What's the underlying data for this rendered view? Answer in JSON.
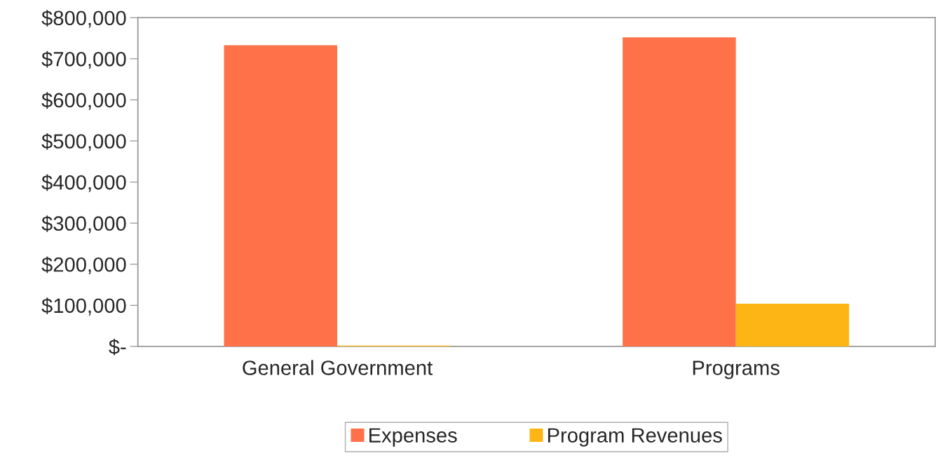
{
  "chart_data": {
    "type": "bar",
    "categories": [
      "General Government",
      "Programs"
    ],
    "series": [
      {
        "name": "Expenses",
        "color": "#ff7149",
        "values": [
          733000,
          752000
        ]
      },
      {
        "name": "Program Revenues",
        "color": "#fdb515",
        "values": [
          2000,
          104000
        ]
      }
    ],
    "ylim": [
      0,
      800000
    ],
    "yticks": [
      {
        "value": 0,
        "label": "$-"
      },
      {
        "value": 100000,
        "label": "$100,000"
      },
      {
        "value": 200000,
        "label": "$200,000"
      },
      {
        "value": 300000,
        "label": "$300,000"
      },
      {
        "value": 400000,
        "label": "$400,000"
      },
      {
        "value": 500000,
        "label": "$500,000"
      },
      {
        "value": 600000,
        "label": "$600,000"
      },
      {
        "value": 700000,
        "label": "$700,000"
      },
      {
        "value": 800000,
        "label": "$800,000"
      }
    ],
    "grid": false,
    "legend": "bottom"
  }
}
